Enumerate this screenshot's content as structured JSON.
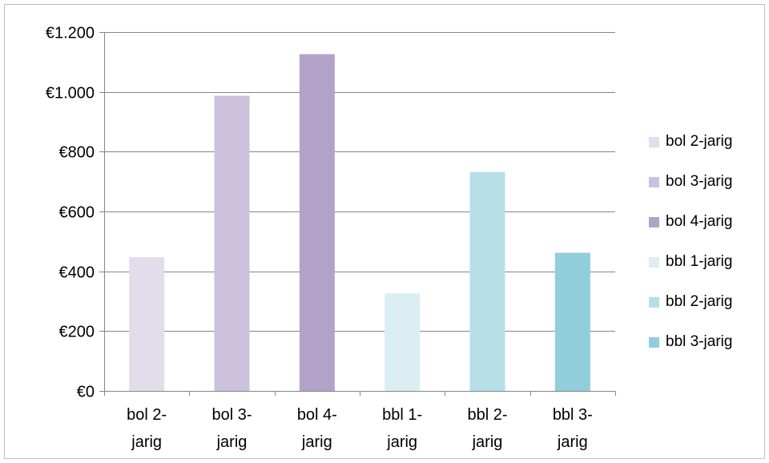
{
  "chart_data": {
    "type": "bar",
    "categories": [
      "bol 2-jarig",
      "bol 3-jarig",
      "bol 4-jarig",
      "bbl 1-jarig",
      "bbl 2-jarig",
      "bbl 3-jarig"
    ],
    "category_label_lines": [
      [
        "bol 2-",
        "jarig"
      ],
      [
        "bol 3-",
        "jarig"
      ],
      [
        "bol 4-",
        "jarig"
      ],
      [
        "bbl 1-",
        "jarig"
      ],
      [
        "bbl 2-",
        "jarig"
      ],
      [
        "bbl 3-",
        "jarig"
      ]
    ],
    "values": [
      447,
      987,
      1126,
      326,
      732,
      462
    ],
    "colors": [
      "#e3dcea",
      "#ccc1dc",
      "#b3a2c8",
      "#dbeef3",
      "#b8dfe8",
      "#92cddc"
    ],
    "ylim": [
      0,
      1200
    ],
    "yticks": [
      0,
      200,
      400,
      600,
      800,
      1000,
      1200
    ],
    "ytick_labels": [
      "€0",
      "€200",
      "€400",
      "€600",
      "€800",
      "€1.000",
      "€1.200"
    ],
    "grid": true,
    "legend_position": "right",
    "legend": [
      "bol 2-jarig",
      "bol 3-jarig",
      "bol 4-jarig",
      "bbl 1-jarig",
      "bbl 2-jarig",
      "bbl 3-jarig"
    ],
    "title": "",
    "xlabel": "",
    "ylabel": ""
  }
}
